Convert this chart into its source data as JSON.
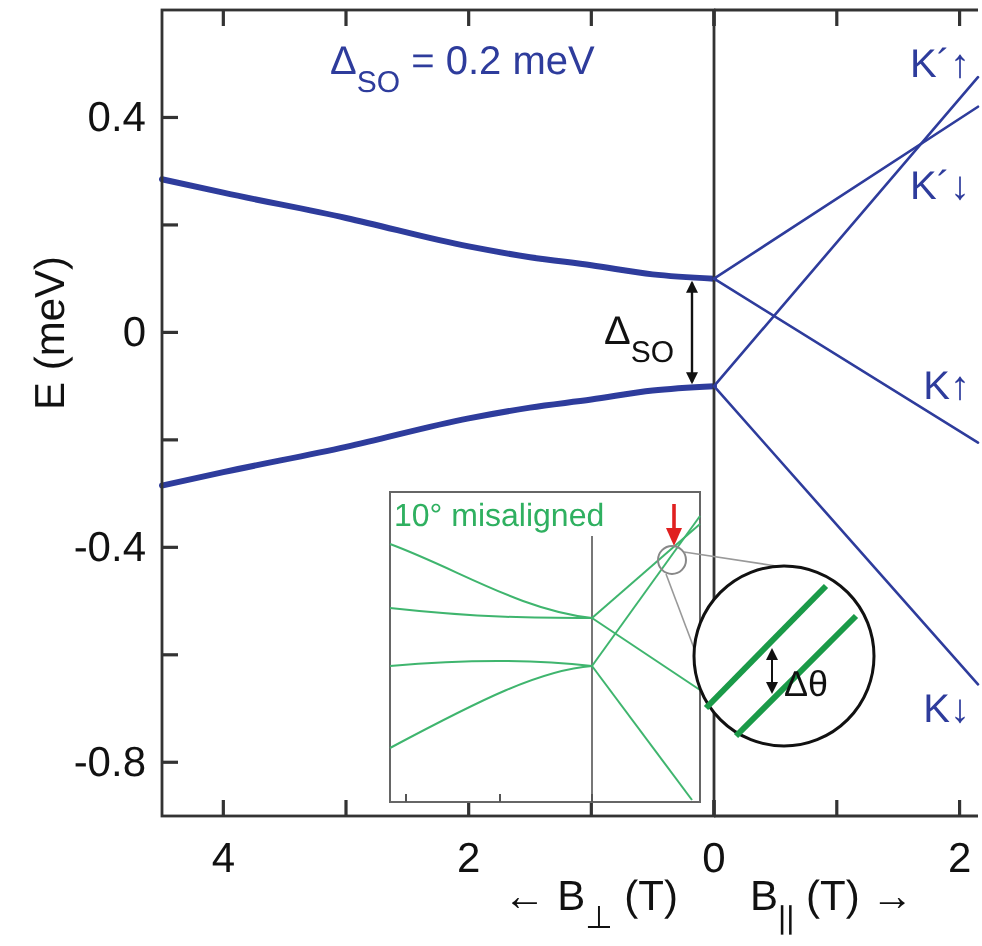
{
  "chart_data": [
    {
      "type": "line",
      "xlabel": "← B$_{⊥}$ (T)",
      "ylabel": "E (meV)",
      "xlim": [
        4.5,
        0
      ],
      "xticks": [
        4,
        {
          "value": 3,
          "label": null
        },
        2,
        {
          "value": 1,
          "label": null
        },
        {
          "value": 0,
          "label": null
        }
      ],
      "ylim": [
        -0.9,
        0.6
      ],
      "yticks": [
        0.4,
        {
          "value": 0.2,
          "label": null
        },
        0,
        {
          "value": -0.2,
          "label": null
        },
        -0.4,
        {
          "value": -0.6,
          "label": null
        },
        -0.8
      ],
      "series": [
        {
          "color": "#2e3c9c",
          "x": [
            4.5,
            4,
            3,
            2,
            1.5,
            1,
            0.5,
            0
          ],
          "values": [
            0.285,
            0.26,
            0.213,
            0.16,
            0.14,
            0.125,
            0.108,
            0.1
          ]
        },
        {
          "color": "#2e3c9c",
          "x": [
            4.5,
            4,
            3,
            2,
            1.5,
            1,
            0.5,
            0
          ],
          "values": [
            -0.285,
            -0.26,
            -0.213,
            -0.16,
            -0.14,
            -0.125,
            -0.108,
            -0.1
          ]
        }
      ],
      "annotations": [
        "Δ$_{SO}$ = 0.2 meV",
        {
          "text": "Δ$_{SO}$",
          "x": 0,
          "y": 0.1
        },
        "10° misaligned",
        "Δθ"
      ]
    },
    {
      "type": "line",
      "xlabel": "B$_{||}$ (T) →",
      "xlim": [
        0,
        2.15
      ],
      "xticks": [
        0,
        {
          "value": 1,
          "label": null
        },
        2
      ],
      "ylim": [
        -0.9,
        0.6
      ],
      "tick_labels": "x",
      "series": [
        {
          "name": "K´↑",
          "color": "#2e3c9c",
          "x": [
            0,
            2.15
          ],
          "values": [
            -0.1,
            0.475
          ]
        },
        {
          "name": "K´↓",
          "color": "#2e3c9c",
          "x": [
            0,
            2.15
          ],
          "values": [
            0.1,
            0.42
          ]
        },
        {
          "name": "K↑",
          "color": "#2e3c9c",
          "x": [
            0,
            2.15
          ],
          "values": [
            0.1,
            -0.205
          ]
        },
        {
          "name": "K↓",
          "color": "#2e3c9c",
          "x": [
            0,
            2.15
          ],
          "values": [
            -0.1,
            -0.655
          ]
        }
      ]
    }
  ]
}
